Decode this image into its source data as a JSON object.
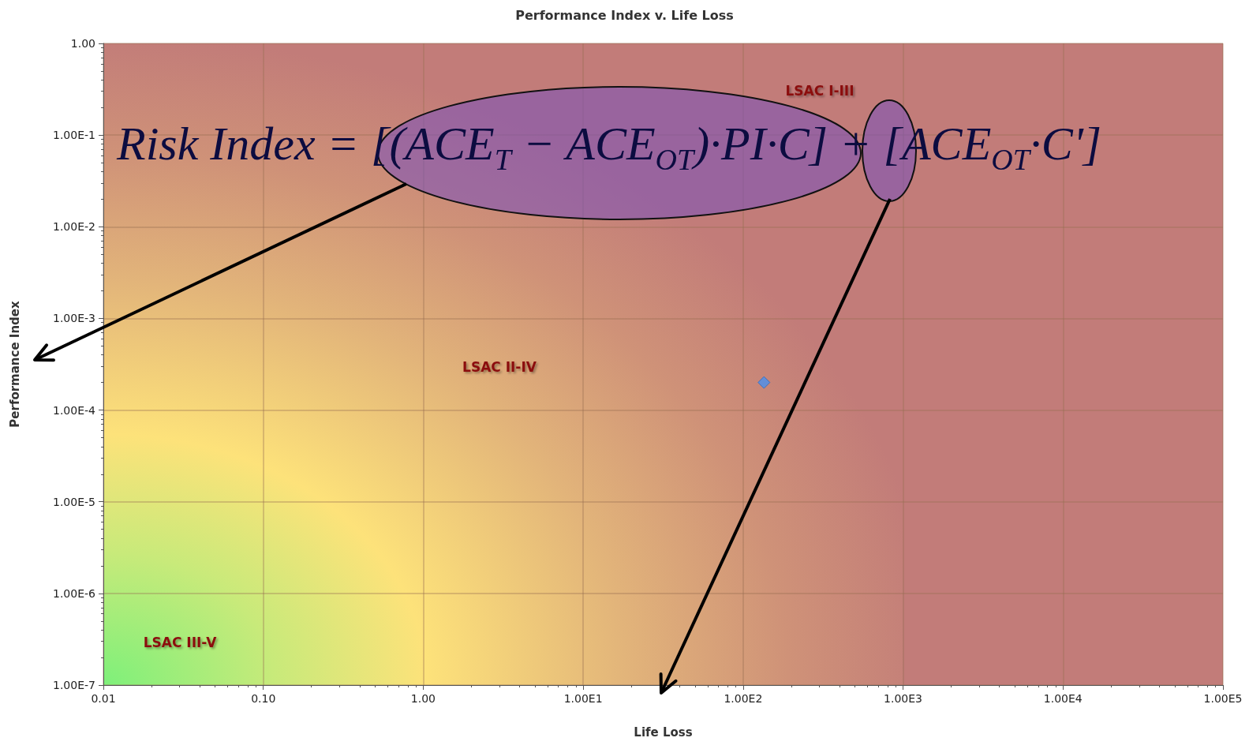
{
  "chart_data": {
    "type": "scatter",
    "title": "Performance Index v. Life Loss",
    "xlabel": "Life Loss",
    "ylabel": "Performance Index",
    "x": [
      135
    ],
    "series": [
      {
        "color": "#4a90f0",
        "values": [
          0.0002
        ]
      }
    ],
    "log": "xy",
    "grid": true,
    "marker": "diamond",
    "xlim": [
      0.01,
      100000
    ],
    "ylim": [
      1e-07,
      1
    ],
    "xticks": [
      {
        "value": 0.01,
        "label": "0.01"
      },
      {
        "value": 0.1,
        "label": "0.10"
      },
      {
        "value": 1,
        "label": "1.00"
      },
      {
        "value": 10,
        "label": "1.00E1"
      },
      {
        "value": 100,
        "label": "1.00E2"
      },
      {
        "value": 1000,
        "label": "1.00E3"
      },
      {
        "value": 10000,
        "label": "1.00E4"
      },
      {
        "value": 100000,
        "label": "1.00E5"
      }
    ],
    "yticks": [
      {
        "value": 1e-07,
        "label": "1.00E-7"
      },
      {
        "value": 1e-06,
        "label": "1.00E-6"
      },
      {
        "value": 1e-05,
        "label": "1.00E-5"
      },
      {
        "value": 0.0001,
        "label": "1.00E-4"
      },
      {
        "value": 0.001,
        "label": "1.00E-3"
      },
      {
        "value": 0.01,
        "label": "1.00E-2"
      },
      {
        "value": 0.1,
        "label": "1.00E-1"
      },
      {
        "value": 1,
        "label": "1.00"
      }
    ],
    "annotations": [
      "LSAC I-III",
      "LSAC II-IV",
      "LSAC III-V",
      "Risk Index = [(ACE$_{T}$ − ACE$_{OT}$)·PI·C] + [ACE$_{OT}$·C']"
    ]
  }
}
